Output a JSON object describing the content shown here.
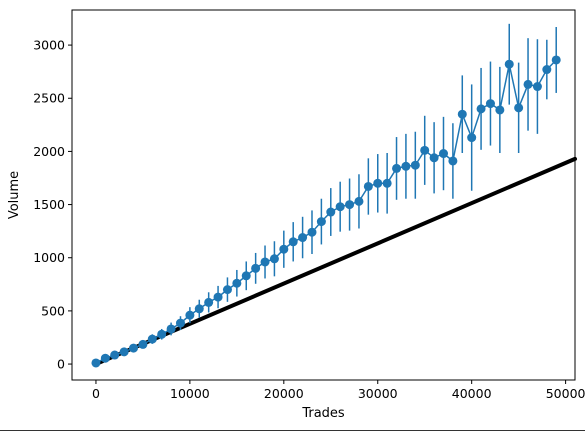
{
  "chart_data": {
    "type": "line",
    "xlabel": "Trades",
    "ylabel": "Volume",
    "xlim": [
      -2550,
      51000
    ],
    "ylim": [
      -150,
      3330
    ],
    "xticks": [
      0,
      10000,
      20000,
      30000,
      40000,
      50000
    ],
    "xtick_labels": [
      "0",
      "10000",
      "20000",
      "30000",
      "40000",
      "50000"
    ],
    "yticks": [
      0,
      500,
      1000,
      1500,
      2000,
      2500,
      3000
    ],
    "ytick_labels": [
      "0",
      "500",
      "1000",
      "1500",
      "2000",
      "2500",
      "3000"
    ],
    "grid": false,
    "legend": "none",
    "series": [
      {
        "style": "line",
        "color": "#000000",
        "x": [
          0,
          51000
        ],
        "y": [
          0,
          1930
        ]
      },
      {
        "style": "errorbar-line",
        "color": "#1f77b4",
        "x": [
          0,
          1000,
          2000,
          3000,
          4000,
          5000,
          6000,
          7000,
          8000,
          9000,
          10000,
          11000,
          12000,
          13000,
          14000,
          15000,
          16000,
          17000,
          18000,
          19000,
          20000,
          21000,
          22000,
          23000,
          24000,
          25000,
          26000,
          27000,
          28000,
          29000,
          30000,
          31000,
          32000,
          33000,
          34000,
          35000,
          36000,
          37000,
          38000,
          39000,
          40000,
          41000,
          42000,
          43000,
          44000,
          45000,
          46000,
          47000,
          48000,
          49000
        ],
        "y": [
          10,
          55,
          85,
          115,
          150,
          185,
          235,
          280,
          330,
          385,
          460,
          520,
          580,
          630,
          700,
          760,
          830,
          900,
          960,
          990,
          1080,
          1150,
          1190,
          1240,
          1340,
          1430,
          1480,
          1500,
          1530,
          1670,
          1700,
          1700,
          1840,
          1860,
          1870,
          2010,
          1940,
          1980,
          1910,
          2350,
          2130,
          2400,
          2450,
          2390,
          2820,
          2410,
          2630,
          2610,
          2770,
          2860
        ],
        "err": [
          10,
          15,
          20,
          25,
          30,
          35,
          45,
          50,
          60,
          65,
          75,
          85,
          95,
          105,
          115,
          125,
          135,
          145,
          155,
          165,
          175,
          185,
          195,
          205,
          215,
          225,
          235,
          245,
          255,
          265,
          275,
          285,
          295,
          305,
          315,
          325,
          335,
          345,
          355,
          365,
          500,
          385,
          395,
          405,
          380,
          425,
          435,
          445,
          280,
          310
        ]
      }
    ]
  }
}
